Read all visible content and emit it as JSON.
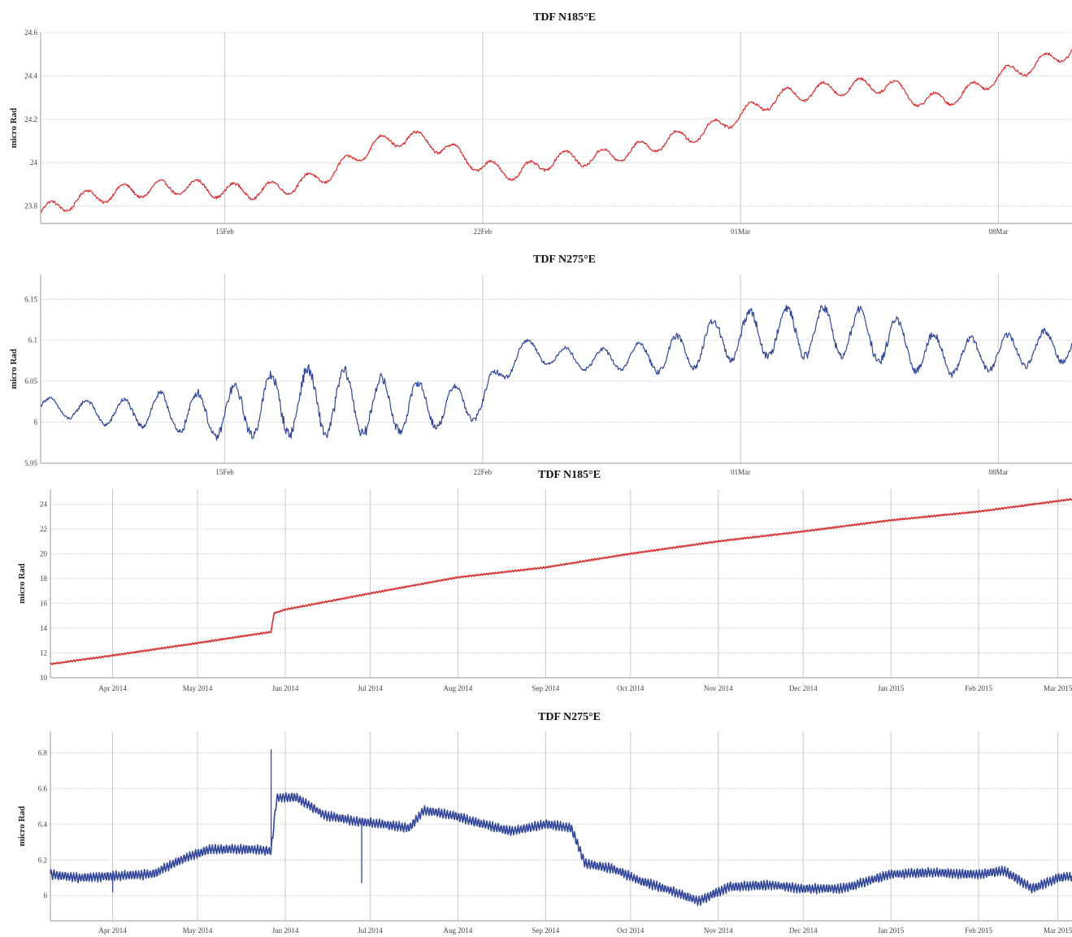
{
  "chart_data": [
    {
      "type": "line",
      "title": "TDF N185°E",
      "ylabel": "micro Rad",
      "xlabel": "",
      "x_range": [
        "2014-02-08",
        "2015-03-11"
      ],
      "ylim": [
        23.72,
        24.6
      ],
      "yticks": [
        23.8,
        24,
        24.2,
        24.4,
        24.6
      ],
      "ytick_labels": [
        "23.8",
        "24",
        "24.2",
        "24.4",
        "24.6"
      ],
      "xticks": [
        {
          "label": "15Feb",
          "date": "2015-02-15"
        },
        {
          "label": "22Feb",
          "date": "2015-02-22"
        },
        {
          "label": "01Mar",
          "date": "2015-03-01"
        },
        {
          "label": "08Mar",
          "date": "2015-03-08"
        }
      ],
      "xlim": [
        "2015-02-10",
        "2015-03-10"
      ],
      "grid": true,
      "color": "#d92a2a",
      "series": [
        {
          "x": [
            "2015-02-10",
            "2015-02-11",
            "2015-02-12",
            "2015-02-13",
            "2015-02-14",
            "2015-02-15",
            "2015-02-16",
            "2015-02-17",
            "2015-02-18",
            "2015-02-19",
            "2015-02-20",
            "2015-02-21",
            "2015-02-22",
            "2015-02-23",
            "2015-02-24",
            "2015-02-25",
            "2015-02-26",
            "2015-02-27",
            "2015-02-28",
            "2015-03-01",
            "2015-03-02",
            "2015-03-03",
            "2015-03-04",
            "2015-03-05",
            "2015-03-06",
            "2015-03-07",
            "2015-03-08",
            "2015-03-09",
            "2015-03-10"
          ],
          "y": [
            23.77,
            23.83,
            23.86,
            23.88,
            23.89,
            23.87,
            23.87,
            23.9,
            23.96,
            24.08,
            24.12,
            24.07,
            23.98,
            23.95,
            24.02,
            24.02,
            24.05,
            24.1,
            24.14,
            24.22,
            24.3,
            24.33,
            24.35,
            24.36,
            24.28,
            24.31,
            24.4,
            24.45,
            24.52
          ],
          "amplitude": 0.035
        }
      ]
    },
    {
      "type": "line",
      "title": "TDF N275°E",
      "ylabel": "micro Rad",
      "xlabel": "",
      "ylim": [
        5.95,
        6.18
      ],
      "yticks": [
        5.95,
        6,
        6.05,
        6.1,
        6.15
      ],
      "ytick_labels": [
        "5.95",
        "6",
        "6.05",
        "6.1",
        "6.15"
      ],
      "xticks": [
        {
          "label": "15Feb",
          "date": "2015-02-15"
        },
        {
          "label": "22Feb",
          "date": "2015-02-22"
        },
        {
          "label": "01Mar",
          "date": "2015-03-01"
        },
        {
          "label": "08Mar",
          "date": "2015-03-08"
        }
      ],
      "xlim": [
        "2015-02-10",
        "2015-03-10"
      ],
      "grid": true,
      "color": "#33479a",
      "series": [
        {
          "x": [
            "2015-02-10",
            "2015-02-11",
            "2015-02-12",
            "2015-02-13",
            "2015-02-14",
            "2015-02-15",
            "2015-02-16",
            "2015-02-17",
            "2015-02-18",
            "2015-02-19",
            "2015-02-20",
            "2015-02-21",
            "2015-02-22",
            "2015-02-23",
            "2015-02-24",
            "2015-02-25",
            "2015-02-26",
            "2015-02-27",
            "2015-02-28",
            "2015-03-01",
            "2015-03-02",
            "2015-03-03",
            "2015-03-04",
            "2015-03-05",
            "2015-03-06",
            "2015-03-07",
            "2015-03-08",
            "2015-03-09",
            "2015-03-10"
          ],
          "y": [
            6.02,
            6.015,
            6.01,
            6.015,
            6.01,
            6.01,
            6.02,
            6.025,
            6.025,
            6.02,
            6.02,
            6.02,
            6.025,
            6.09,
            6.08,
            6.075,
            6.08,
            6.08,
            6.095,
            6.105,
            6.11,
            6.11,
            6.11,
            6.1,
            6.085,
            6.08,
            6.085,
            6.09,
            6.095
          ],
          "amplitude": [
            0.01,
            0.012,
            0.015,
            0.02,
            0.025,
            0.03,
            0.035,
            0.04,
            0.04,
            0.035,
            0.03,
            0.025,
            0.02,
            0.012,
            0.012,
            0.012,
            0.015,
            0.02,
            0.025,
            0.028,
            0.03,
            0.03,
            0.03,
            0.03,
            0.025,
            0.022,
            0.02,
            0.02,
            0.02
          ]
        }
      ]
    },
    {
      "type": "line",
      "title": "TDF N185°E",
      "ylabel": "micro Rad",
      "xlabel": "",
      "ylim": [
        10,
        25.2
      ],
      "yticks": [
        10,
        12,
        14,
        16,
        18,
        20,
        22,
        24
      ],
      "ytick_labels": [
        "10",
        "12",
        "14",
        "16",
        "18",
        "20",
        "22",
        "24"
      ],
      "xticks": [
        {
          "label": "Apr 2014",
          "date": "2014-04-01"
        },
        {
          "label": "May 2014",
          "date": "2014-05-01"
        },
        {
          "label": "Jun 2014",
          "date": "2014-06-01"
        },
        {
          "label": "Jul 2014",
          "date": "2014-07-01"
        },
        {
          "label": "Aug 2014",
          "date": "2014-08-01"
        },
        {
          "label": "Sep 2014",
          "date": "2014-09-01"
        },
        {
          "label": "Oct 2014",
          "date": "2014-10-01"
        },
        {
          "label": "Nov 2014",
          "date": "2014-11-01"
        },
        {
          "label": "Dec 2014",
          "date": "2014-12-01"
        },
        {
          "label": "Jan 2015",
          "date": "2015-01-01"
        },
        {
          "label": "Feb 2015",
          "date": "2015-02-01"
        },
        {
          "label": "Mar 2015",
          "date": "2015-03-01"
        }
      ],
      "xlim": [
        "2014-03-10",
        "2015-03-06"
      ],
      "grid": true,
      "color": "#d92a2a",
      "series": [
        {
          "x": [
            "2014-03-10",
            "2014-04-01",
            "2014-05-01",
            "2014-05-27",
            "2014-05-28",
            "2014-06-01",
            "2014-07-01",
            "2014-08-01",
            "2014-09-01",
            "2014-10-01",
            "2014-11-01",
            "2014-12-01",
            "2015-01-01",
            "2015-02-01",
            "2015-03-06"
          ],
          "y": [
            11.1,
            11.8,
            12.8,
            13.7,
            15.2,
            15.5,
            16.8,
            18.1,
            18.9,
            20.0,
            21.0,
            21.8,
            22.7,
            23.4,
            24.4
          ],
          "amplitude": 0.06
        }
      ]
    },
    {
      "type": "line",
      "title": "TDF N275°E",
      "ylabel": "micro Rad",
      "xlabel": "",
      "ylim": [
        5.86,
        6.92
      ],
      "yticks": [
        6,
        6.2,
        6.4,
        6.6,
        6.8
      ],
      "ytick_labels": [
        "6",
        "6.2",
        "6.4",
        "6.6",
        "6.8"
      ],
      "xticks": [
        {
          "label": "Apr 2014",
          "date": "2014-04-01"
        },
        {
          "label": "May 2014",
          "date": "2014-05-01"
        },
        {
          "label": "Jun 2014",
          "date": "2014-06-01"
        },
        {
          "label": "Jul 2014",
          "date": "2014-07-01"
        },
        {
          "label": "Aug 2014",
          "date": "2014-08-01"
        },
        {
          "label": "Sep 2014",
          "date": "2014-09-01"
        },
        {
          "label": "Oct 2014",
          "date": "2014-10-01"
        },
        {
          "label": "Nov 2014",
          "date": "2014-11-01"
        },
        {
          "label": "Dec 2014",
          "date": "2014-12-01"
        },
        {
          "label": "Jan 2015",
          "date": "2015-01-01"
        },
        {
          "label": "Feb 2015",
          "date": "2015-02-01"
        },
        {
          "label": "Mar 2015",
          "date": "2015-03-01"
        }
      ],
      "xlim": [
        "2014-03-10",
        "2015-03-06"
      ],
      "grid": true,
      "color": "#33479a",
      "series": [
        {
          "x": [
            "2014-03-10",
            "2014-03-20",
            "2014-04-01",
            "2014-04-15",
            "2014-04-25",
            "2014-05-05",
            "2014-05-20",
            "2014-05-27",
            "2014-05-29",
            "2014-06-05",
            "2014-06-15",
            "2014-06-25",
            "2014-07-05",
            "2014-07-15",
            "2014-07-20",
            "2014-07-30",
            "2014-08-10",
            "2014-08-20",
            "2014-09-01",
            "2014-09-10",
            "2014-09-15",
            "2014-09-25",
            "2014-10-05",
            "2014-10-15",
            "2014-10-25",
            "2014-11-05",
            "2014-11-20",
            "2014-12-01",
            "2014-12-15",
            "2015-01-01",
            "2015-01-15",
            "2015-02-01",
            "2015-02-10",
            "2015-02-20",
            "2015-03-01",
            "2015-03-06"
          ],
          "y": [
            6.12,
            6.1,
            6.11,
            6.12,
            6.2,
            6.26,
            6.26,
            6.25,
            6.55,
            6.55,
            6.45,
            6.42,
            6.4,
            6.38,
            6.48,
            6.45,
            6.4,
            6.36,
            6.4,
            6.38,
            6.18,
            6.15,
            6.08,
            6.03,
            5.97,
            6.05,
            6.06,
            6.04,
            6.04,
            6.12,
            6.13,
            6.12,
            6.14,
            6.04,
            6.1,
            6.11
          ],
          "amplitude": 0.025,
          "spikes": [
            {
              "date": "2014-05-27",
              "y": 6.82
            },
            {
              "date": "2014-06-28",
              "y": 6.07
            },
            {
              "date": "2014-04-01",
              "y": 6.02
            }
          ]
        }
      ]
    }
  ]
}
